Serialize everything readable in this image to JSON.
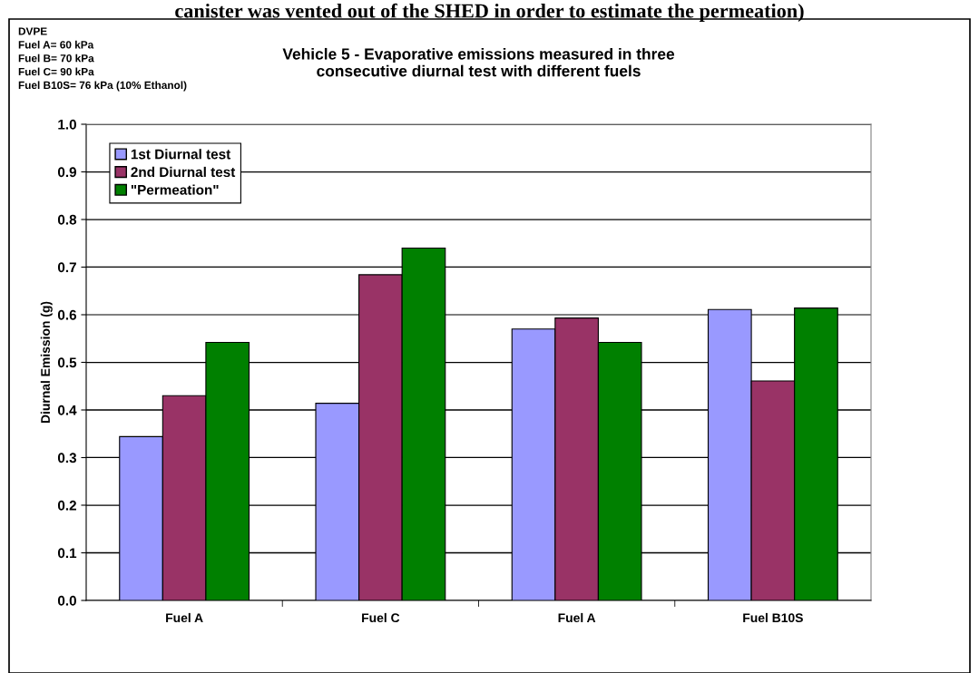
{
  "chart_data": {
    "type": "bar",
    "title": "Vehicle 5 - Evaporative emissions measured in three\nconsecutive diurnal test with different fuels",
    "ylabel": "Diurnal Emission (g)",
    "categories": [
      "Fuel A",
      "Fuel C",
      "Fuel A",
      "Fuel B10S"
    ],
    "series": [
      {
        "name": "1st Diurnal test",
        "color": "#9999ff",
        "values": [
          0.344,
          0.414,
          0.57,
          0.611
        ]
      },
      {
        "name": "2nd Diurnal test",
        "color": "#993366",
        "values": [
          0.43,
          0.684,
          0.593,
          0.461
        ]
      },
      {
        "name": "\"Permeation\"",
        "color": "#008000",
        "values": [
          0.542,
          0.74,
          0.542,
          0.614
        ]
      }
    ],
    "ylim": [
      0,
      1.0
    ],
    "yticks": [
      {
        "value": 0,
        "label": "0.0"
      },
      {
        "value": 0.1,
        "label": "0.1"
      },
      {
        "value": 0.2,
        "label": "0.2"
      },
      {
        "value": 0.3,
        "label": "0.3"
      },
      {
        "value": 0.4,
        "label": "0.4"
      },
      {
        "value": 0.5,
        "label": "0.5"
      },
      {
        "value": 0.6,
        "label": "0.6"
      },
      {
        "value": 0.7,
        "label": "0.7"
      },
      {
        "value": 0.8,
        "label": "0.8"
      },
      {
        "value": 0.9,
        "label": "0.9"
      },
      {
        "value": 1.0,
        "label": "1.0"
      }
    ],
    "grid": "y",
    "legend": "top left",
    "annotations": [
      "canister was vented out of the SHED in order to estimate the permeation)",
      "DVPE\nFuel A= 60 kPa\nFuel B= 70 kPa\nFuel C= 90 kPa\nFuel B10S= 76 kPa (10% Ethanol)"
    ]
  }
}
